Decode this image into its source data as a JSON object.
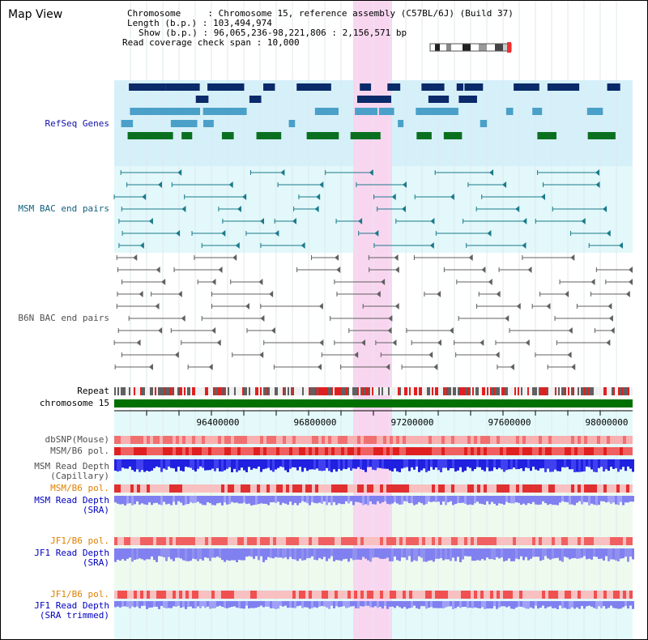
{
  "title": "Map View",
  "info": {
    "chromosome_label": "Chromosome",
    "chromosome_value": "Chromosome 15, reference assembly (C57BL/6J) (Build 37)",
    "length_label": "Length (b.p.)",
    "length_value": "103,494,974",
    "show_label": "Show (b.p.)",
    "show_value": "96,065,236-98,221,806 : 2,156,571 bp",
    "coverage_label": "Read coverage check span",
    "coverage_value": "10,000"
  },
  "tracks": {
    "refseq": "RefSeq Genes",
    "msm_bac": "MSM BAC end pairs",
    "b6n_bac": "B6N BAC end pairs",
    "repeat": "Repeat",
    "chromosome": "chromosome 15",
    "dbsnp": "dbSNP(Mouse)",
    "msm_b6_pol": "MSM/B6 pol.",
    "msm_depth_1": "MSM Read Depth",
    "msm_depth_2": "(Capillary)",
    "msm_b6_pol_sra": "MSM/B6 pol.",
    "msm_sra_1": "MSM Read Depth",
    "msm_sra_2": "(SRA)",
    "jf1_b6_pol": "JF1/B6 pol.",
    "jf1_sra_1": "JF1 Read Depth",
    "jf1_sra_2": "(SRA)",
    "jf1_b6_pol_trim": "JF1/B6 pol.",
    "jf1_trim_1": "JF1 Read Depth",
    "jf1_trim_2": "(SRA trimmed)"
  },
  "axis": {
    "ticks": [
      "96400000",
      "96800000",
      "97200000",
      "97600000",
      "98000000"
    ]
  },
  "colors": {
    "highlight": "#f9d6f0",
    "refseq_bg": "#d6f0fa",
    "bac_bg": "#e2f8fa",
    "refseq_label": "#1010aa",
    "msm_label": "#106080",
    "b6n_label": "#505050",
    "orange_label": "#e08000",
    "blue_label": "#0000c0",
    "depth_dark": "#2020e0",
    "depth_light": "#8080f0",
    "chromosome_bar": "#007000"
  }
}
